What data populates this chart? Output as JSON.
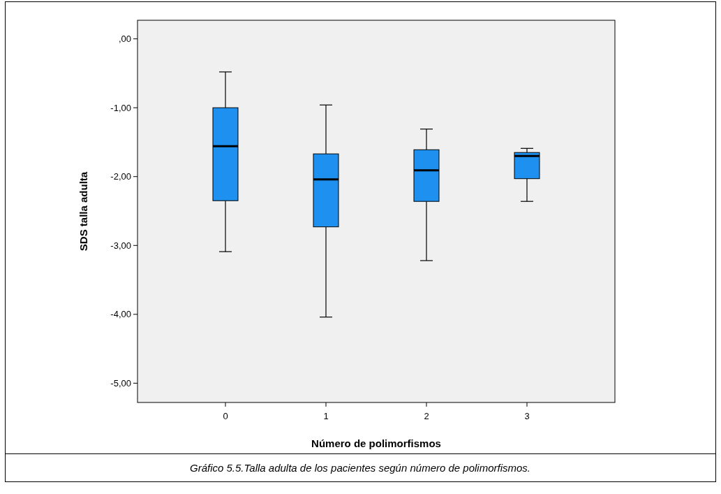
{
  "chart_data": {
    "type": "box",
    "xlabel": "Número de polimorfismos",
    "ylabel": "SDS talla adulta",
    "categories": [
      "0",
      "1",
      "2",
      "3"
    ],
    "color": "#1e90f0",
    "boxes": [
      {
        "low": -3.09,
        "q1": -2.35,
        "median": -1.56,
        "q3": -1.0,
        "high": -0.48
      },
      {
        "low": -4.04,
        "q1": -2.73,
        "median": -2.04,
        "q3": -1.67,
        "high": -0.96
      },
      {
        "low": -3.22,
        "q1": -2.36,
        "median": -1.91,
        "q3": -1.61,
        "high": -1.31
      },
      {
        "low": -2.36,
        "q1": -2.03,
        "median": -1.7,
        "q3": -1.65,
        "high": -1.59
      }
    ],
    "ylim": [
      -5.28,
      0.27
    ],
    "yticks": [
      {
        "value": 0,
        "label": ",00"
      },
      {
        "value": -1,
        "label": "-1,00"
      },
      {
        "value": -2,
        "label": "-2,00"
      },
      {
        "value": -3,
        "label": "-3,00"
      },
      {
        "value": -4,
        "label": "-4,00"
      },
      {
        "value": -5,
        "label": "-5,00"
      }
    ],
    "grid": false,
    "annotations": [
      "Gráfico 5.5.Talla adulta de los pacientes según número de polimorfismos."
    ]
  }
}
